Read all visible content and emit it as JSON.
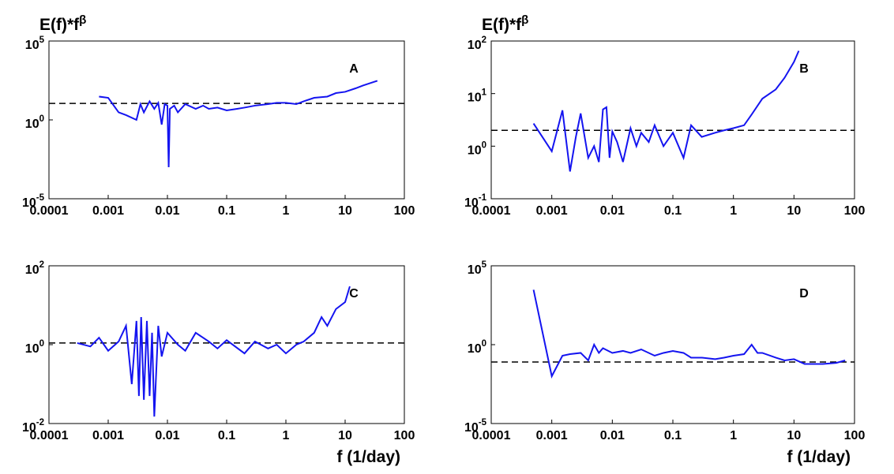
{
  "chart_data": [
    {
      "type": "line",
      "y_label": "E(f)*f^β",
      "annotation": "A",
      "x_scale": "log",
      "y_scale": "log",
      "xlim": [
        0.0001,
        100
      ],
      "xticks": [
        0.0001,
        0.001,
        0.01,
        0.1,
        1,
        10,
        100
      ],
      "ylim": [
        1e-05,
        100000
      ],
      "yticks": [
        {
          "value": 1e-05,
          "label": "10^-5"
        },
        {
          "value": 1,
          "label": "10^0"
        },
        {
          "value": 100000,
          "label": "10^5"
        }
      ],
      "reference_line": 11,
      "reference_color": "#000000",
      "x": [
        0.0007,
        0.001,
        0.0015,
        0.002,
        0.003,
        0.0035,
        0.004,
        0.005,
        0.006,
        0.007,
        0.008,
        0.009,
        0.01,
        0.0105,
        0.011,
        0.013,
        0.015,
        0.02,
        0.03,
        0.04,
        0.05,
        0.07,
        0.1,
        0.15,
        0.2,
        0.3,
        0.5,
        0.7,
        1,
        1.5,
        2,
        3,
        5,
        7,
        10,
        15,
        20,
        30,
        35
      ],
      "series": [
        {
          "color": "#1414f0",
          "values": [
            30,
            25,
            3,
            2,
            1,
            10,
            3,
            15,
            5,
            12,
            0.5,
            10,
            8,
            0.001,
            5,
            8,
            3,
            10,
            5,
            8,
            5,
            6,
            4,
            5,
            6,
            8,
            10,
            12,
            12,
            10,
            15,
            25,
            30,
            50,
            60,
            100,
            150,
            250,
            300
          ]
        }
      ]
    },
    {
      "type": "line",
      "y_label": "E(f)*f^β",
      "annotation": "B",
      "x_scale": "log",
      "y_scale": "log",
      "xlim": [
        0.0001,
        100
      ],
      "xticks": [
        0.0001,
        0.001,
        0.01,
        0.1,
        1,
        10,
        100
      ],
      "ylim": [
        0.1,
        100
      ],
      "yticks": [
        {
          "value": 0.1,
          "label": "10^-1"
        },
        {
          "value": 1,
          "label": "10^0"
        },
        {
          "value": 10,
          "label": "10^1"
        },
        {
          "value": 100,
          "label": "10^2"
        }
      ],
      "reference_line": 2,
      "reference_color": "#000000",
      "x": [
        0.0005,
        0.001,
        0.0015,
        0.002,
        0.0025,
        0.003,
        0.004,
        0.005,
        0.006,
        0.007,
        0.008,
        0.009,
        0.01,
        0.012,
        0.015,
        0.02,
        0.025,
        0.03,
        0.04,
        0.05,
        0.07,
        0.1,
        0.15,
        0.2,
        0.3,
        0.5,
        0.7,
        1,
        1.5,
        2,
        3,
        5,
        7,
        10,
        12
      ],
      "series": [
        {
          "color": "#1414f0",
          "values": [
            2.7,
            0.8,
            4.8,
            0.33,
            1.5,
            4.2,
            0.6,
            1,
            0.5,
            5,
            5.5,
            0.6,
            1.9,
            1.2,
            0.5,
            2.2,
            1,
            1.8,
            1.2,
            2.5,
            1,
            1.8,
            0.6,
            2.5,
            1.5,
            1.8,
            2,
            2.2,
            2.5,
            4,
            8,
            12,
            20,
            40,
            65
          ]
        }
      ]
    },
    {
      "type": "line",
      "x_label": "f (1/day)",
      "annotation": "C",
      "x_scale": "log",
      "y_scale": "log",
      "xlim": [
        0.0001,
        100
      ],
      "xticks": [
        0.0001,
        0.001,
        0.01,
        0.1,
        1,
        10,
        100
      ],
      "ylim": [
        0.01,
        100
      ],
      "yticks": [
        {
          "value": 0.01,
          "label": "10^-2"
        },
        {
          "value": 1,
          "label": "10^0"
        },
        {
          "value": 100,
          "label": "10^2"
        }
      ],
      "reference_line": 1.1,
      "reference_color": "#000000",
      "x": [
        0.0003,
        0.0005,
        0.0007,
        0.001,
        0.0015,
        0.002,
        0.0025,
        0.003,
        0.0033,
        0.0036,
        0.004,
        0.0045,
        0.005,
        0.0055,
        0.006,
        0.007,
        0.008,
        0.01,
        0.015,
        0.02,
        0.03,
        0.05,
        0.07,
        0.1,
        0.2,
        0.3,
        0.5,
        0.7,
        1,
        1.5,
        2,
        3,
        4,
        5,
        7,
        10,
        12
      ],
      "series": [
        {
          "color": "#1414f0",
          "values": [
            1.1,
            0.9,
            1.5,
            0.7,
            1.2,
            3,
            0.1,
            4,
            0.05,
            5,
            0.04,
            4,
            0.05,
            2,
            0.015,
            3,
            0.5,
            2,
            1,
            0.7,
            2,
            1.2,
            0.8,
            1.3,
            0.6,
            1.2,
            0.8,
            1,
            0.6,
            1,
            1.2,
            2,
            5,
            3,
            8,
            12,
            30
          ]
        }
      ]
    },
    {
      "type": "line",
      "x_label": "f (1/day)",
      "annotation": "D",
      "x_scale": "log",
      "y_scale": "log",
      "xlim": [
        0.0001,
        100
      ],
      "xticks": [
        0.0001,
        0.001,
        0.01,
        0.1,
        1,
        10,
        100
      ],
      "ylim": [
        1e-05,
        100000
      ],
      "yticks": [
        {
          "value": 1e-05,
          "label": "10^-5"
        },
        {
          "value": 1,
          "label": "10^0"
        },
        {
          "value": 100000,
          "label": "10^5"
        }
      ],
      "reference_line": 0.08,
      "reference_color": "#000000",
      "x": [
        0.0005,
        0.001,
        0.0015,
        0.002,
        0.003,
        0.004,
        0.005,
        0.006,
        0.007,
        0.01,
        0.015,
        0.02,
        0.03,
        0.05,
        0.07,
        0.1,
        0.15,
        0.2,
        0.3,
        0.5,
        0.7,
        1,
        1.5,
        2,
        2.5,
        3,
        5,
        7,
        10,
        15,
        20,
        30,
        50,
        70
      ],
      "series": [
        {
          "color": "#1414f0",
          "values": [
            3000,
            0.01,
            0.2,
            0.25,
            0.3,
            0.1,
            1,
            0.3,
            0.6,
            0.3,
            0.4,
            0.3,
            0.5,
            0.2,
            0.3,
            0.4,
            0.3,
            0.15,
            0.15,
            0.12,
            0.15,
            0.2,
            0.25,
            1,
            0.3,
            0.3,
            0.15,
            0.1,
            0.12,
            0.06,
            0.06,
            0.06,
            0.07,
            0.1
          ]
        }
      ]
    }
  ]
}
